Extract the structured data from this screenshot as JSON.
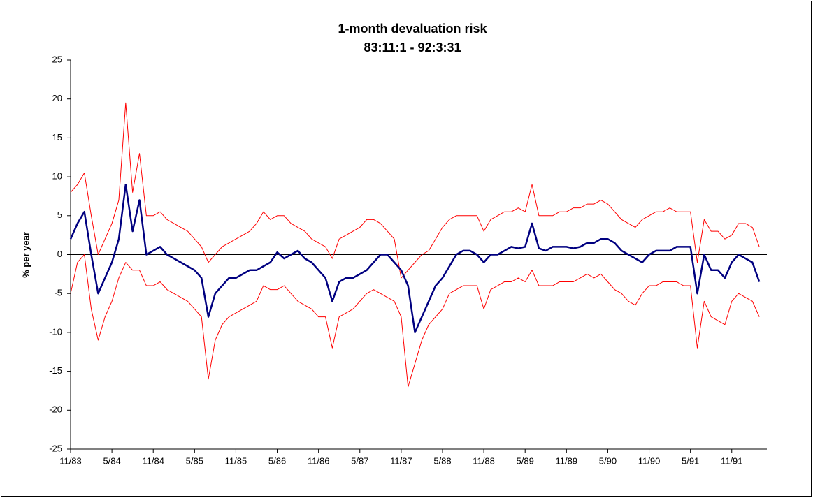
{
  "chart_data": {
    "type": "line",
    "title": "1-month devaluation risk",
    "subtitle": "83:11:1 - 92:3:31",
    "y_label": "% per year",
    "ylim": [
      -25,
      25
    ],
    "yticks": [
      -25,
      -20,
      -15,
      -10,
      -5,
      0,
      5,
      10,
      15,
      20,
      25
    ],
    "grid": false,
    "categories": [
      "11/83",
      null,
      null,
      null,
      null,
      null,
      "5/84",
      null,
      null,
      null,
      null,
      null,
      "11/84",
      null,
      null,
      null,
      null,
      null,
      "5/85",
      null,
      null,
      null,
      null,
      null,
      "11/85",
      null,
      null,
      null,
      null,
      null,
      "5/86",
      null,
      null,
      null,
      null,
      null,
      "11/86",
      null,
      null,
      null,
      null,
      null,
      "5/87",
      null,
      null,
      null,
      null,
      null,
      "11/87",
      null,
      null,
      null,
      null,
      null,
      "5/88",
      null,
      null,
      null,
      null,
      null,
      "11/88",
      null,
      null,
      null,
      null,
      null,
      "5/89",
      null,
      null,
      null,
      null,
      null,
      "11/89",
      null,
      null,
      null,
      null,
      null,
      "5/90",
      null,
      null,
      null,
      null,
      null,
      "11/90",
      null,
      null,
      null,
      null,
      null,
      "5/91",
      null,
      null,
      null,
      null,
      null,
      "11/91",
      null,
      null,
      null,
      null
    ],
    "series": [
      {
        "color": "#ff0000",
        "width": 1,
        "values": [
          8,
          9,
          10.5,
          5,
          0,
          2,
          4,
          7,
          19.5,
          8,
          13,
          5,
          5,
          5.5,
          4.5,
          4,
          3.5,
          3,
          2,
          1,
          -1,
          0,
          1,
          1.5,
          2,
          2.5,
          3,
          4,
          5.5,
          4.5,
          5,
          5,
          4,
          3.5,
          3,
          2,
          1.5,
          1,
          -0.5,
          2,
          2.5,
          3,
          3.5,
          4.5,
          4.5,
          4,
          3,
          2,
          -3,
          -2,
          -1,
          0,
          0.5,
          2,
          3.5,
          4.5,
          5,
          5,
          5,
          5,
          3,
          4.5,
          5,
          5.5,
          5.5,
          6,
          5.5,
          9,
          5,
          5,
          5,
          5.5,
          5.5,
          6,
          6,
          6.5,
          6.5,
          7,
          6.5,
          5.5,
          4.5,
          4,
          3.5,
          4.5,
          5,
          5.5,
          5.5,
          6,
          5.5,
          5.5,
          5.5,
          -1,
          4.5,
          3,
          3,
          2,
          2.5,
          4,
          4,
          3.5,
          1
        ]
      },
      {
        "color": "#ff0000",
        "width": 1,
        "values": [
          -5,
          -1,
          0,
          -7,
          -11,
          -8,
          -6,
          -3,
          -1,
          -2,
          -2,
          -4,
          -4,
          -3.5,
          -4.5,
          -5,
          -5.5,
          -6,
          -7,
          -8,
          -16,
          -11,
          -9,
          -8,
          -7.5,
          -7,
          -6.5,
          -6,
          -4,
          -4.5,
          -4.5,
          -4,
          -5,
          -6,
          -6.5,
          -7,
          -8,
          -8,
          -12,
          -8,
          -7.5,
          -7,
          -6,
          -5,
          -4.5,
          -5,
          -5.5,
          -6,
          -8,
          -17,
          -14,
          -11,
          -9,
          -8,
          -7,
          -5,
          -4.5,
          -4,
          -4,
          -4,
          -7,
          -4.5,
          -4,
          -3.5,
          -3.5,
          -3,
          -3.5,
          -2,
          -4,
          -4,
          -4,
          -3.5,
          -3.5,
          -3.5,
          -3,
          -2.5,
          -3,
          -2.5,
          -3.5,
          -4.5,
          -5,
          -6,
          -6.5,
          -5,
          -4,
          -4,
          -3.5,
          -3.5,
          -3.5,
          -4,
          -4,
          -12,
          -6,
          -8,
          -8.5,
          -9,
          -6,
          -5,
          -5.5,
          -6,
          -8
        ]
      },
      {
        "color": "#000080",
        "width": 2.5,
        "values": [
          2,
          4,
          5.5,
          0,
          -5,
          -3,
          -1,
          2,
          9,
          3,
          7,
          0,
          0.5,
          1,
          0,
          -0.5,
          -1,
          -1.5,
          -2,
          -3,
          -8,
          -5,
          -4,
          -3,
          -3,
          -2.5,
          -2,
          -2,
          -1.5,
          -1,
          0.3,
          -0.5,
          0,
          0.5,
          -0.5,
          -1,
          -2,
          -3,
          -6,
          -3.5,
          -3,
          -3,
          -2.5,
          -2,
          -1,
          0,
          0,
          -1,
          -2,
          -4,
          -10,
          -8,
          -6,
          -4,
          -3,
          -1.5,
          0,
          0.5,
          0.5,
          0,
          -1,
          0,
          0,
          0.5,
          1,
          0.8,
          1,
          4,
          0.8,
          0.5,
          1,
          1,
          1,
          0.8,
          1,
          1.5,
          1.5,
          2,
          2,
          1.5,
          0.5,
          0,
          -0.5,
          -1,
          0,
          0.5,
          0.5,
          0.5,
          1,
          1,
          1,
          -5,
          0,
          -2,
          -2,
          -3,
          -1,
          0,
          -0.5,
          -1,
          -3.5
        ]
      }
    ]
  }
}
